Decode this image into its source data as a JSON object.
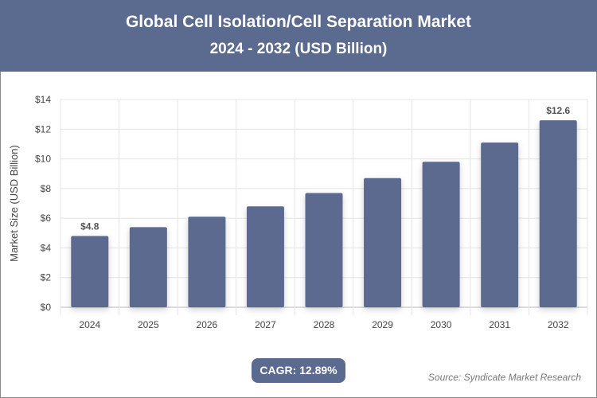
{
  "header": {
    "title": "Global Cell Isolation/Cell Separation Market",
    "subtitle": "2024 - 2032 (USD Billion)"
  },
  "cagr": "CAGR: 12.89%",
  "source": "Source: Syndicate Market Research",
  "chart_data": {
    "type": "bar",
    "title": "Global Cell Isolation/Cell Separation Market",
    "subtitle": "2024 - 2032 (USD Billion)",
    "categories": [
      "2024",
      "2025",
      "2026",
      "2027",
      "2028",
      "2029",
      "2030",
      "2031",
      "2032"
    ],
    "values": [
      4.8,
      5.4,
      6.1,
      6.8,
      7.7,
      8.7,
      9.8,
      11.1,
      12.6
    ],
    "data_labels": {
      "0": "$4.8",
      "8": "$12.6"
    },
    "ylabel": "Market Size (USD Billion)",
    "xlabel": "",
    "ylim": [
      0,
      14
    ],
    "yticks": [
      "$0",
      "$2",
      "$4",
      "$6",
      "$8",
      "$10",
      "$12",
      "$14"
    ],
    "grid": true,
    "bar_color": "#5b6a8f"
  }
}
